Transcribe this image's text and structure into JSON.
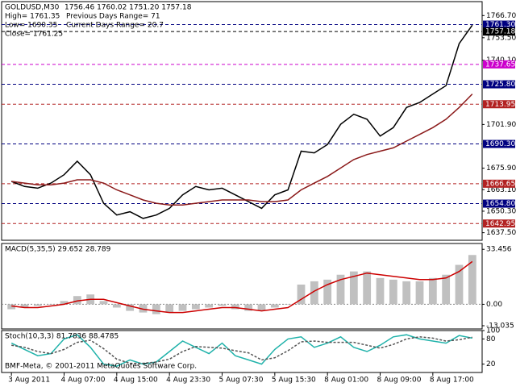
{
  "chart_data": [
    {
      "type": "line",
      "title": "GOLDUSD,M30",
      "subtitle": "1756.46 1760.02 1751.20 1757.18",
      "annotations": [
        "High= 1761.35",
        "Previous Days Range= 71",
        "Low= 1690.35",
        "Current Days Range= 20.7",
        "Close= 1761.25"
      ],
      "categories": [
        "3 Aug 2011",
        null,
        null,
        null,
        "4 Aug 07:00",
        null,
        null,
        null,
        "4 Aug 15:00",
        null,
        null,
        null,
        "4 Aug 23:30",
        null,
        null,
        null,
        "5 Aug 07:30",
        null,
        null,
        null,
        "5 Aug 15:30",
        null,
        null,
        null,
        "8 Aug 01:00",
        null,
        null,
        null,
        "8 Aug 09:00",
        null,
        null,
        null,
        "8 Aug 17:00",
        null,
        null,
        null
      ],
      "series": [
        {
          "color": "#000000",
          "values": [
            1668,
            1665,
            1664,
            1667,
            1672,
            1680,
            1672,
            1655,
            1648,
            1650,
            1646,
            1648,
            1652,
            1660,
            1665,
            1663,
            1664,
            1660,
            1656,
            1652,
            1660,
            1663,
            1686,
            1685,
            1690,
            1702,
            1708,
            1705,
            1695,
            1700,
            1712,
            1715,
            1720,
            1725,
            1750,
            1761
          ]
        },
        {
          "color": "#8b1a1a",
          "values": [
            1668,
            1667,
            1666,
            1666,
            1667,
            1669,
            1669,
            1667,
            1663,
            1660,
            1657,
            1655,
            1654,
            1654,
            1655,
            1656,
            1657,
            1657,
            1657,
            1656,
            1656,
            1657,
            1663,
            1667,
            1671,
            1676,
            1681,
            1684,
            1686,
            1688,
            1692,
            1696,
            1700,
            1705,
            1712,
            1720
          ]
        }
      ],
      "ylim": [
        1633,
        1775
      ],
      "yticks": [
        {
          "value": 1766.7,
          "label": "1766.70"
        },
        {
          "value": 1753.5,
          "label": "1753.50"
        },
        {
          "value": 1740.1,
          "label": "1740.10"
        },
        {
          "value": 1701.9,
          "label": "1701.90"
        },
        {
          "value": 1675.9,
          "label": "1675.90"
        },
        {
          "value": 1663.1,
          "label": "1663.10"
        },
        {
          "value": 1650.3,
          "label": "1650.30"
        },
        {
          "value": 1637.5,
          "label": "1637.50"
        }
      ],
      "levels": [
        {
          "value": 1761.3,
          "label": "1761.30",
          "color": "#000080"
        },
        {
          "value": 1757.18,
          "label": "1757.18",
          "color": "#000000"
        },
        {
          "value": 1737.65,
          "label": "1737.65",
          "color": "#cc00cc"
        },
        {
          "value": 1725.8,
          "label": "1725.80",
          "color": "#000080"
        },
        {
          "value": 1713.95,
          "label": "1713.95",
          "color": "#b22222"
        },
        {
          "value": 1690.3,
          "label": "1690.30",
          "color": "#000080"
        },
        {
          "value": 1666.65,
          "label": "1666.65",
          "color": "#b22222"
        },
        {
          "value": 1654.8,
          "label": "1654.80",
          "color": "#000080"
        },
        {
          "value": 1642.95,
          "label": "1642.95",
          "color": "#b22222"
        }
      ]
    },
    {
      "type": "bar",
      "title": "MACD(5,35,5) 29.652 28.789",
      "series": [
        {
          "color": "#c0c0c0",
          "values": [
            -3,
            -2,
            -1,
            0,
            2,
            5,
            6,
            2,
            -2,
            -4,
            -5,
            -6,
            -5,
            -4,
            -3,
            -2,
            -1,
            -3,
            -4,
            -4,
            -2,
            0,
            12,
            14,
            15,
            18,
            20,
            20,
            16,
            15,
            14,
            14,
            16,
            18,
            24,
            30
          ]
        },
        {
          "color": "#cc0000",
          "values": [
            -1,
            -2,
            -2,
            -1,
            0,
            2,
            3,
            3,
            1,
            -1,
            -3,
            -4,
            -5,
            -5,
            -4,
            -3,
            -2,
            -2,
            -3,
            -4,
            -3,
            -2,
            3,
            8,
            12,
            15,
            17,
            19,
            18,
            17,
            16,
            15,
            15,
            16,
            20,
            26
          ]
        }
      ],
      "ylim": [
        -15,
        37
      ],
      "yticks": [
        {
          "value": 33.456,
          "label": "33.456"
        },
        {
          "value": 0,
          "label": "0.00"
        },
        {
          "value": -13.035,
          "label": "-13.035"
        }
      ]
    },
    {
      "type": "line",
      "title": "Stoch(10,3,3) 81.7836 88.4785",
      "annotation": "BMF-Meta, © 2001-2011 MetaQuotes Software Corp.",
      "series": [
        {
          "color": "#20b2aa",
          "values": [
            70,
            55,
            40,
            45,
            80,
            90,
            60,
            20,
            15,
            30,
            20,
            25,
            50,
            75,
            60,
            45,
            70,
            40,
            30,
            20,
            55,
            80,
            85,
            60,
            70,
            85,
            60,
            50,
            65,
            85,
            90,
            80,
            75,
            70,
            88,
            82
          ]
        },
        {
          "color": "#555555",
          "values": [
            65,
            60,
            50,
            45,
            55,
            72,
            77,
            57,
            32,
            22,
            22,
            25,
            32,
            50,
            62,
            60,
            58,
            52,
            47,
            30,
            35,
            52,
            73,
            75,
            72,
            72,
            72,
            65,
            58,
            67,
            80,
            85,
            82,
            75,
            78,
            84
          ]
        }
      ],
      "ylim": [
        0,
        100
      ],
      "yticks": [
        100,
        80,
        20
      ]
    }
  ]
}
